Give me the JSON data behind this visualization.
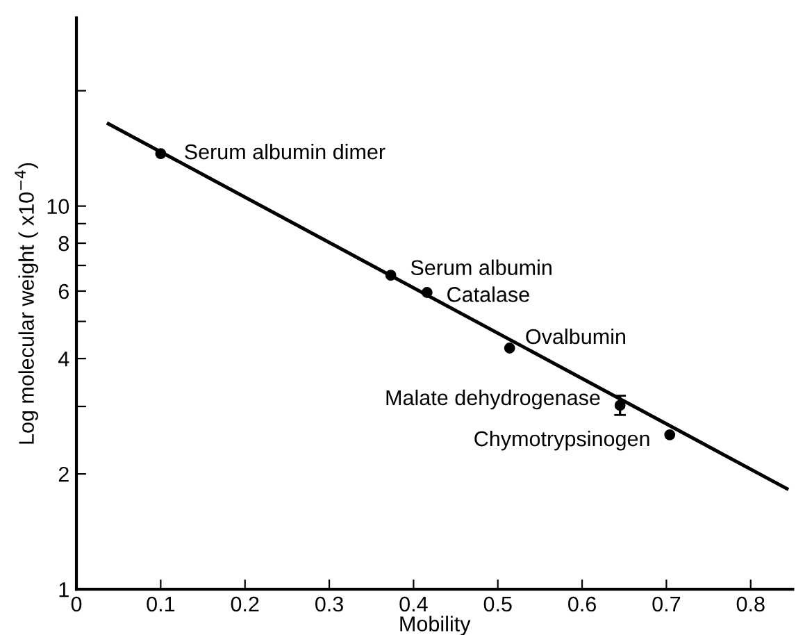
{
  "chart_data": {
    "type": "scatter",
    "xlabel": "Mobility",
    "ylabel": "Log molecular weight ( x10$^{−4}$)",
    "log": "y",
    "xlim": [
      0,
      0.85
    ],
    "ylim": [
      1,
      31
    ],
    "xticks": [
      {
        "value": 0,
        "label": "0"
      },
      0.1,
      0.2,
      0.3,
      0.4,
      0.5,
      0.6,
      0.7,
      0.8
    ],
    "yticks": [
      1,
      2,
      {
        "value": 3,
        "label": null
      },
      4,
      {
        "value": 5,
        "label": null
      },
      6,
      {
        "value": 7,
        "label": null
      },
      8,
      {
        "value": 9,
        "label": null
      },
      10,
      {
        "value": 20,
        "label": null
      }
    ],
    "grid": false,
    "marker": "circle",
    "series": [
      {
        "color": "#000000",
        "x": [
          0.1,
          0.373,
          0.416,
          0.514,
          0.645,
          0.704
        ],
        "values": [
          13.7,
          6.6,
          5.95,
          4.26,
          3.02,
          2.53
        ],
        "errors": [
          null,
          null,
          null,
          null,
          [
            2.85,
            3.2
          ],
          null
        ]
      },
      {
        "type": "line",
        "color": "#000000",
        "x": [
          0.038,
          0.843
        ],
        "values": [
          16.4,
          1.83
        ],
        "marker": "none",
        "line_style": "solid"
      }
    ],
    "annotations": [
      {
        "text": "Serum albumin dimer",
        "x": 0.1,
        "y": 13.7
      },
      {
        "text": "Serum albumin",
        "x": 0.373,
        "y": 6.6
      },
      {
        "text": "Catalase",
        "x": 0.416,
        "y": 5.95
      },
      {
        "text": "Ovalbumin",
        "x": 0.514,
        "y": 4.26
      },
      {
        "text": "Malate dehydrogenase",
        "x": 0.645,
        "y": 3.02
      },
      {
        "text": "Chymotrypsinogen",
        "x": 0.704,
        "y": 2.53
      }
    ]
  }
}
